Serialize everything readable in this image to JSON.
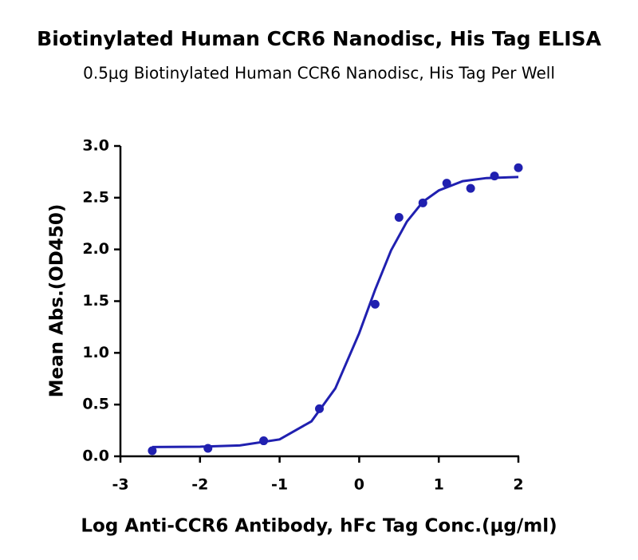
{
  "chart_data": {
    "type": "scatter",
    "title": "Biotinylated Human CCR6 Nanodisc, His Tag ELISA",
    "subtitle": "0.5μg Biotinylated Human CCR6 Nanodisc, His Tag Per Well",
    "x_label": "Log Anti-CCR6 Antibody, hFc Tag Conc.(μg/ml)",
    "y_label": "Mean Abs.(OD450)",
    "xlim": [
      -3,
      2
    ],
    "xticks": [
      -3,
      -2,
      -1,
      0,
      1,
      2
    ],
    "ylim": [
      0,
      3
    ],
    "yticks": [
      {
        "value": 0,
        "label": "0.0"
      },
      {
        "value": 0.5,
        "label": "0.5"
      },
      {
        "value": 1,
        "label": "1.0"
      },
      {
        "value": 1.5,
        "label": "1.5"
      },
      {
        "value": 2,
        "label": "2.0"
      },
      {
        "value": 2.5,
        "label": "2.5"
      },
      {
        "value": 3,
        "label": "3.0"
      }
    ],
    "series": [
      {
        "kind": "points",
        "color": "#2020b0",
        "x": [
          -2.6,
          -1.9,
          -1.2,
          -0.5,
          0.2,
          0.5,
          0.8,
          1.1,
          1.4,
          1.7,
          2.0
        ],
        "values": [
          0.054,
          0.077,
          0.15,
          0.46,
          1.47,
          2.31,
          2.45,
          2.64,
          2.59,
          2.71,
          2.79
        ]
      },
      {
        "kind": "curve",
        "color": "#2020b0",
        "x": [
          -2.6,
          -2,
          -1.5,
          -1,
          -0.6,
          -0.3,
          0,
          0.2,
          0.4,
          0.6,
          0.8,
          1.0,
          1.3,
          1.6,
          2.0
        ],
        "values": [
          0.09,
          0.093,
          0.105,
          0.163,
          0.338,
          0.656,
          1.19,
          1.61,
          1.99,
          2.27,
          2.46,
          2.57,
          2.66,
          2.69,
          2.7
        ]
      }
    ]
  }
}
